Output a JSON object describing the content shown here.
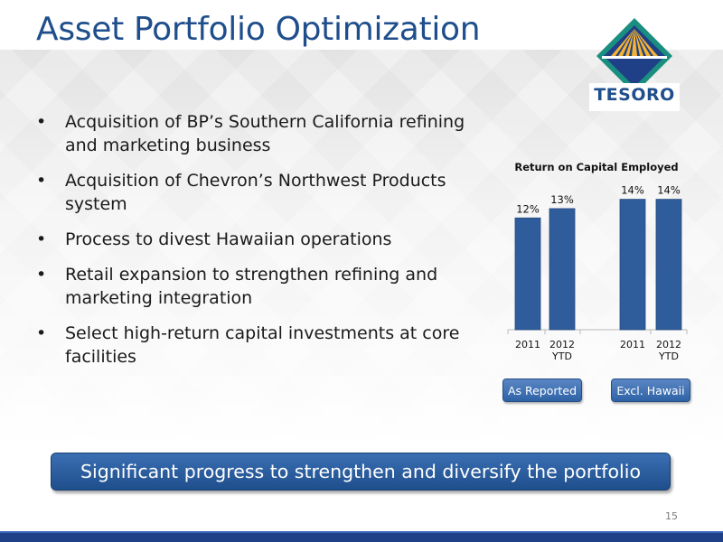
{
  "slide": {
    "title": "Asset Portfolio Optimization",
    "logo_text": "TESORO",
    "bullets": [
      "Acquisition of BP’s Southern California refining and marketing business",
      "Acquisition of Chevron’s Northwest Products system",
      "Process to divest Hawaiian operations",
      "Retail expansion to strengthen refining and marketing integration",
      "Select high-return capital investments at core facilities"
    ],
    "banner": "Significant progress to strengthen and diversify the portfolio",
    "page_number": "15",
    "colors": {
      "title": "#1f4e8c",
      "bar_fill": "#2f5d9c",
      "banner": "#1f4e8c"
    }
  },
  "chart_data": {
    "type": "bar",
    "title": "Return on Capital Employed",
    "categories": [
      "2011",
      "2012 YTD",
      "2011",
      "2012 YTD"
    ],
    "category_lines": [
      [
        "2011"
      ],
      [
        "2012",
        "YTD"
      ],
      [
        "2011"
      ],
      [
        "2012",
        "YTD"
      ]
    ],
    "values": [
      12,
      13,
      14,
      14
    ],
    "value_labels": [
      "12%",
      "13%",
      "14%",
      "14%"
    ],
    "groups": [
      {
        "label": "As Reported",
        "indices": [
          0,
          1
        ]
      },
      {
        "label": "Excl. Hawaii",
        "indices": [
          2,
          3
        ]
      }
    ],
    "ylim": [
      0,
      16
    ],
    "grid": false,
    "xlabel": "",
    "ylabel": ""
  }
}
